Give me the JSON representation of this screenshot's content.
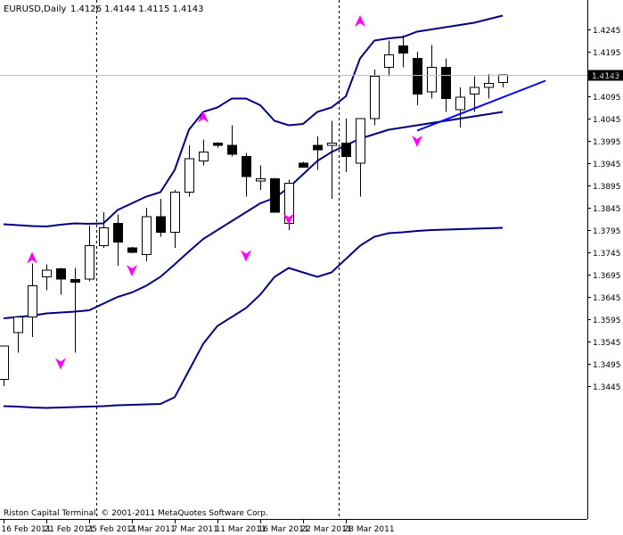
{
  "header": {
    "symbol_tf": "EURUSD,Daily",
    "ohlc": "1.4126 1.4144 1.4115 1.4143"
  },
  "footer": {
    "copyright": "Riston Capital Terminal, © 2001-2011 MetaQuotes Software Corp."
  },
  "current_price_label": "1.4143",
  "colors": {
    "band": "#000080",
    "trendline": "#0000ff",
    "fractal": "#ff00ff",
    "bear_body": "#000000",
    "bull_body": "#ffffff",
    "grid_current": "#c0c0c0"
  },
  "chart_data": {
    "type": "candlestick",
    "symbol": "EURUSD",
    "timeframe": "Daily",
    "ylim": [
      1.3445,
      1.4275
    ],
    "y_ticks": [
      "1.4245",
      "1.4195",
      "1.4145",
      "1.4095",
      "1.4045",
      "1.3995",
      "1.3945",
      "1.3895",
      "1.3845",
      "1.3795",
      "1.3745",
      "1.3695",
      "1.3645",
      "1.3595",
      "1.3545",
      "1.3495",
      "1.3445"
    ],
    "x_ticks": [
      "16 Feb 2011",
      "21 Feb 2011",
      "25 Feb 2011",
      "2 Mar 2011",
      "7 Mar 2011",
      "11 Mar 2011",
      "16 Mar 2011",
      "22 Mar 2011",
      "28 Mar 2011"
    ],
    "x_tick_index": [
      0,
      3,
      6,
      9,
      12,
      15,
      18,
      21,
      24
    ],
    "candles": [
      {
        "o": 1.346,
        "h": 1.3535,
        "l": 1.3445,
        "c": 1.3535
      },
      {
        "o": 1.3565,
        "h": 1.36,
        "l": 1.352,
        "c": 1.36
      },
      {
        "o": 1.36,
        "h": 1.372,
        "l": 1.3555,
        "c": 1.367
      },
      {
        "o": 1.369,
        "h": 1.3718,
        "l": 1.366,
        "c": 1.3705
      },
      {
        "o": 1.3708,
        "h": 1.371,
        "l": 1.365,
        "c": 1.3685
      },
      {
        "o": 1.3684,
        "h": 1.371,
        "l": 1.352,
        "c": 1.3678
      },
      {
        "o": 1.3685,
        "h": 1.3805,
        "l": 1.368,
        "c": 1.376
      },
      {
        "o": 1.376,
        "h": 1.3835,
        "l": 1.3755,
        "c": 1.38
      },
      {
        "o": 1.381,
        "h": 1.383,
        "l": 1.3715,
        "c": 1.3768
      },
      {
        "o": 1.3755,
        "h": 1.3757,
        "l": 1.3743,
        "c": 1.3745
      },
      {
        "o": 1.374,
        "h": 1.3845,
        "l": 1.3725,
        "c": 1.3825
      },
      {
        "o": 1.3825,
        "h": 1.3865,
        "l": 1.378,
        "c": 1.379
      },
      {
        "o": 1.379,
        "h": 1.3885,
        "l": 1.3755,
        "c": 1.388
      },
      {
        "o": 1.388,
        "h": 1.3985,
        "l": 1.387,
        "c": 1.3955
      },
      {
        "o": 1.395,
        "h": 1.3998,
        "l": 1.394,
        "c": 1.397
      },
      {
        "o": 1.399,
        "h": 1.3992,
        "l": 1.398,
        "c": 1.3985
      },
      {
        "o": 1.3985,
        "h": 1.403,
        "l": 1.396,
        "c": 1.3965
      },
      {
        "o": 1.396,
        "h": 1.3968,
        "l": 1.387,
        "c": 1.3915
      },
      {
        "o": 1.3905,
        "h": 1.394,
        "l": 1.3885,
        "c": 1.391
      },
      {
        "o": 1.391,
        "h": 1.3912,
        "l": 1.3835,
        "c": 1.3835
      },
      {
        "o": 1.381,
        "h": 1.3908,
        "l": 1.3795,
        "c": 1.39
      },
      {
        "o": 1.3945,
        "h": 1.3948,
        "l": 1.3936,
        "c": 1.3936
      },
      {
        "o": 1.3985,
        "h": 1.4005,
        "l": 1.393,
        "c": 1.3975
      },
      {
        "o": 1.3985,
        "h": 1.404,
        "l": 1.3865,
        "c": 1.399
      },
      {
        "o": 1.399,
        "h": 1.4045,
        "l": 1.3925,
        "c": 1.396
      },
      {
        "o": 1.3945,
        "h": 1.404,
        "l": 1.387,
        "c": 1.4045
      },
      {
        "o": 1.4045,
        "h": 1.4155,
        "l": 1.403,
        "c": 1.414
      },
      {
        "o": 1.416,
        "h": 1.422,
        "l": 1.414,
        "c": 1.4188
      },
      {
        "o": 1.4208,
        "h": 1.4232,
        "l": 1.416,
        "c": 1.4192
      },
      {
        "o": 1.418,
        "h": 1.4195,
        "l": 1.4075,
        "c": 1.41
      },
      {
        "o": 1.4105,
        "h": 1.421,
        "l": 1.409,
        "c": 1.416
      },
      {
        "o": 1.416,
        "h": 1.418,
        "l": 1.406,
        "c": 1.409
      },
      {
        "o": 1.4065,
        "h": 1.4115,
        "l": 1.4025,
        "c": 1.4093
      },
      {
        "o": 1.41,
        "h": 1.414,
        "l": 1.406,
        "c": 1.4115
      },
      {
        "o": 1.4115,
        "h": 1.4145,
        "l": 1.409,
        "c": 1.4124
      },
      {
        "o": 1.4126,
        "h": 1.4144,
        "l": 1.4115,
        "c": 1.4143
      }
    ],
    "fractals_up": [
      {
        "index": 2,
        "value": 1.3732
      },
      {
        "index": 14,
        "value": 1.4048
      },
      {
        "index": 25,
        "value": 1.4263
      }
    ],
    "fractals_down": [
      {
        "index": 4,
        "value": 1.3496
      },
      {
        "index": 9,
        "value": 1.3705
      },
      {
        "index": 17,
        "value": 1.3738
      },
      {
        "index": 20,
        "value": 1.382
      },
      {
        "index": 29,
        "value": 1.3995
      }
    ],
    "bollinger_upper": [
      1.3808,
      1.3806,
      1.3804,
      1.3803,
      1.3807,
      1.381,
      1.3809,
      1.381,
      1.384,
      1.3855,
      1.387,
      1.388,
      1.393,
      1.402,
      1.406,
      1.407,
      1.409,
      1.409,
      1.4075,
      1.404,
      1.403,
      1.4033,
      1.406,
      1.407,
      1.4095,
      1.418,
      1.422,
      1.4225,
      1.4228,
      1.424,
      1.4245,
      1.425,
      1.4255,
      1.426,
      1.4268,
      1.4276
    ],
    "bollinger_middle": [
      1.3597,
      1.36,
      1.3603,
      1.3608,
      1.361,
      1.3612,
      1.3615,
      1.363,
      1.3645,
      1.3655,
      1.367,
      1.369,
      1.3718,
      1.3747,
      1.3775,
      1.3795,
      1.3815,
      1.3835,
      1.3855,
      1.3867,
      1.389,
      1.392,
      1.395,
      1.397,
      1.3985,
      1.4,
      1.401,
      1.402,
      1.4025,
      1.403,
      1.4035,
      1.404,
      1.4045,
      1.405,
      1.4055,
      1.406
    ],
    "bollinger_lower": [
      1.34,
      1.3399,
      1.3397,
      1.3396,
      1.3397,
      1.3398,
      1.3399,
      1.34,
      1.3402,
      1.3403,
      1.3404,
      1.3405,
      1.342,
      1.348,
      1.354,
      1.358,
      1.36,
      1.362,
      1.365,
      1.369,
      1.371,
      1.37,
      1.369,
      1.37,
      1.373,
      1.376,
      1.378,
      1.3788,
      1.379,
      1.3793,
      1.3795,
      1.3796,
      1.3797,
      1.3798,
      1.3799,
      1.38
    ],
    "trendline": {
      "from": {
        "index": 29,
        "value": 1.4018
      },
      "to": {
        "index": 38,
        "value": 1.413
      }
    },
    "current_price": 1.4143,
    "grid": false,
    "period_separators_index": [
      6.5,
      23.5
    ]
  }
}
